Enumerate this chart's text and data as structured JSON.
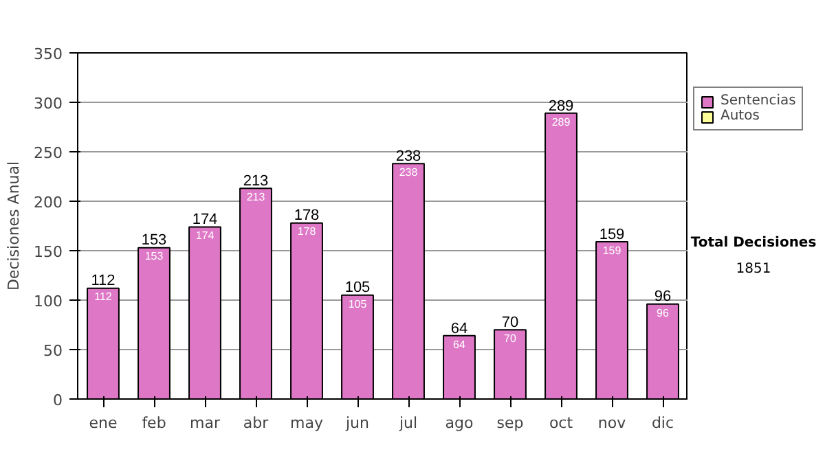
{
  "chart_data": {
    "type": "bar",
    "stacked": true,
    "ylabel": "Decisiones Anual",
    "categories": [
      "ene",
      "feb",
      "mar",
      "abr",
      "may",
      "jun",
      "jul",
      "ago",
      "sep",
      "oct",
      "nov",
      "dic"
    ],
    "series": [
      {
        "name": "Sentencias",
        "color": "#dd77c6",
        "values": [
          112,
          153,
          174,
          213,
          178,
          105,
          238,
          64,
          70,
          289,
          159,
          96
        ]
      },
      {
        "name": "Autos",
        "color": "#ffff99",
        "values": [
          null,
          null,
          null,
          null,
          null,
          null,
          null,
          null,
          null,
          null,
          null,
          null
        ]
      }
    ],
    "totals": [
      "112",
      "153",
      "174",
      "213",
      "178",
      "105",
      "238",
      "64",
      "70",
      "289",
      "159",
      "96"
    ],
    "data_labels": true,
    "ylim": [
      0,
      350
    ],
    "yticks": [
      0,
      50,
      100,
      150,
      200,
      250,
      300,
      350
    ],
    "grid": "y",
    "legend": "right",
    "annotations": [
      "Total Decisiones",
      "1851"
    ]
  }
}
